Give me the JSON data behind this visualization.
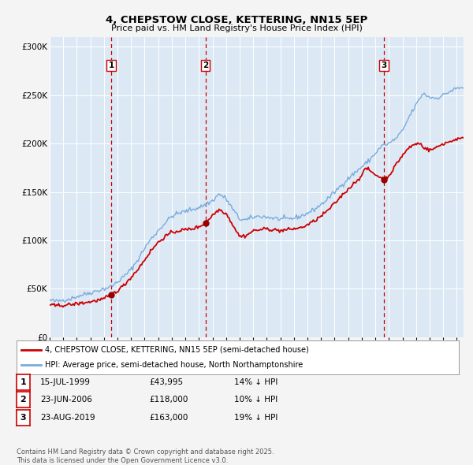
{
  "title": "4, CHEPSTOW CLOSE, KETTERING, NN15 5EP",
  "subtitle": "Price paid vs. HM Land Registry's House Price Index (HPI)",
  "background_color": "#f4f4f4",
  "plot_bg_color": "#dce9f5",
  "red_line_color": "#cc0000",
  "blue_line_color": "#7aabdc",
  "grid_color": "#ffffff",
  "sale_marker_color": "#990000",
  "dashed_line_color": "#cc0000",
  "ylim": [
    0,
    310000
  ],
  "yticks": [
    0,
    50000,
    100000,
    150000,
    200000,
    250000,
    300000
  ],
  "ytick_labels": [
    "£0",
    "£50K",
    "£100K",
    "£150K",
    "£200K",
    "£250K",
    "£300K"
  ],
  "sales": [
    {
      "num": 1,
      "date_x": 1999.54,
      "price": 43995,
      "label": "15-JUL-1999",
      "price_str": "£43,995",
      "hpi_str": "14% ↓ HPI"
    },
    {
      "num": 2,
      "date_x": 2006.48,
      "price": 118000,
      "label": "23-JUN-2006",
      "price_str": "£118,000",
      "hpi_str": "10% ↓ HPI"
    },
    {
      "num": 3,
      "date_x": 2019.64,
      "price": 163000,
      "label": "23-AUG-2019",
      "price_str": "£163,000",
      "hpi_str": "19% ↓ HPI"
    }
  ],
  "legend_entries": [
    {
      "label": "4, CHEPSTOW CLOSE, KETTERING, NN15 5EP (semi-detached house)",
      "color": "#cc0000"
    },
    {
      "label": "HPI: Average price, semi-detached house, North Northamptonshire",
      "color": "#7aabdc"
    }
  ],
  "footnote": "Contains HM Land Registry data © Crown copyright and database right 2025.\nThis data is licensed under the Open Government Licence v3.0.",
  "xmin": 1995.0,
  "xmax": 2025.5,
  "hpi_key_points": [
    [
      1995.0,
      38000
    ],
    [
      1995.5,
      37000
    ],
    [
      1996.0,
      38500
    ],
    [
      1996.5,
      39500
    ],
    [
      1997.0,
      42000
    ],
    [
      1997.5,
      44000
    ],
    [
      1998.0,
      46000
    ],
    [
      1998.5,
      48000
    ],
    [
      1999.0,
      50000
    ],
    [
      1999.5,
      52000
    ],
    [
      2000.0,
      57000
    ],
    [
      2000.5,
      63000
    ],
    [
      2001.0,
      70000
    ],
    [
      2001.5,
      80000
    ],
    [
      2002.0,
      92000
    ],
    [
      2002.5,
      102000
    ],
    [
      2003.0,
      110000
    ],
    [
      2003.5,
      118000
    ],
    [
      2004.0,
      125000
    ],
    [
      2004.5,
      128000
    ],
    [
      2005.0,
      130000
    ],
    [
      2005.5,
      132000
    ],
    [
      2006.0,
      134000
    ],
    [
      2006.5,
      137000
    ],
    [
      2007.0,
      141000
    ],
    [
      2007.5,
      148000
    ],
    [
      2008.0,
      143000
    ],
    [
      2008.5,
      132000
    ],
    [
      2009.0,
      122000
    ],
    [
      2009.5,
      121000
    ],
    [
      2010.0,
      124000
    ],
    [
      2010.5,
      125000
    ],
    [
      2011.0,
      124000
    ],
    [
      2011.5,
      123000
    ],
    [
      2012.0,
      122000
    ],
    [
      2012.5,
      122000
    ],
    [
      2013.0,
      123000
    ],
    [
      2013.5,
      125000
    ],
    [
      2014.0,
      128000
    ],
    [
      2014.5,
      132000
    ],
    [
      2015.0,
      137000
    ],
    [
      2015.5,
      143000
    ],
    [
      2016.0,
      150000
    ],
    [
      2016.5,
      157000
    ],
    [
      2017.0,
      164000
    ],
    [
      2017.5,
      170000
    ],
    [
      2018.0,
      176000
    ],
    [
      2018.5,
      182000
    ],
    [
      2019.0,
      190000
    ],
    [
      2019.5,
      198000
    ],
    [
      2020.0,
      200000
    ],
    [
      2020.5,
      205000
    ],
    [
      2021.0,
      213000
    ],
    [
      2021.5,
      228000
    ],
    [
      2022.0,
      240000
    ],
    [
      2022.5,
      252000
    ],
    [
      2023.0,
      248000
    ],
    [
      2023.5,
      247000
    ],
    [
      2024.0,
      250000
    ],
    [
      2024.5,
      254000
    ],
    [
      2025.0,
      257000
    ],
    [
      2025.5,
      258000
    ]
  ],
  "price_key_points": [
    [
      1995.0,
      33000
    ],
    [
      1995.5,
      32500
    ],
    [
      1996.0,
      33000
    ],
    [
      1996.5,
      33500
    ],
    [
      1997.0,
      34500
    ],
    [
      1997.5,
      35500
    ],
    [
      1998.0,
      36500
    ],
    [
      1998.5,
      38000
    ],
    [
      1999.0,
      39500
    ],
    [
      1999.54,
      43995
    ],
    [
      2000.0,
      48000
    ],
    [
      2000.5,
      54000
    ],
    [
      2001.0,
      62000
    ],
    [
      2001.5,
      70000
    ],
    [
      2002.0,
      80000
    ],
    [
      2002.5,
      90000
    ],
    [
      2003.0,
      98000
    ],
    [
      2003.5,
      104000
    ],
    [
      2004.0,
      108000
    ],
    [
      2004.5,
      110000
    ],
    [
      2005.0,
      111000
    ],
    [
      2005.5,
      112000
    ],
    [
      2006.0,
      114000
    ],
    [
      2006.48,
      118000
    ],
    [
      2007.0,
      126000
    ],
    [
      2007.5,
      132000
    ],
    [
      2008.0,
      128000
    ],
    [
      2008.5,
      116000
    ],
    [
      2009.0,
      104000
    ],
    [
      2009.5,
      105000
    ],
    [
      2010.0,
      110000
    ],
    [
      2010.5,
      111000
    ],
    [
      2011.0,
      112000
    ],
    [
      2011.5,
      111000
    ],
    [
      2012.0,
      110000
    ],
    [
      2012.5,
      111000
    ],
    [
      2013.0,
      112000
    ],
    [
      2013.5,
      113000
    ],
    [
      2014.0,
      116000
    ],
    [
      2014.5,
      120000
    ],
    [
      2015.0,
      125000
    ],
    [
      2015.5,
      131000
    ],
    [
      2016.0,
      138000
    ],
    [
      2016.5,
      146000
    ],
    [
      2017.0,
      153000
    ],
    [
      2017.5,
      160000
    ],
    [
      2018.0,
      167000
    ],
    [
      2018.3,
      175000
    ],
    [
      2018.6,
      172000
    ],
    [
      2019.0,
      168000
    ],
    [
      2019.4,
      165000
    ],
    [
      2019.64,
      163000
    ],
    [
      2020.0,
      167000
    ],
    [
      2020.3,
      173000
    ],
    [
      2020.6,
      180000
    ],
    [
      2021.0,
      188000
    ],
    [
      2021.5,
      196000
    ],
    [
      2022.0,
      200000
    ],
    [
      2022.3,
      200000
    ],
    [
      2022.6,
      196000
    ],
    [
      2023.0,
      193000
    ],
    [
      2023.5,
      196000
    ],
    [
      2024.0,
      200000
    ],
    [
      2024.5,
      202000
    ],
    [
      2025.0,
      205000
    ],
    [
      2025.5,
      205000
    ]
  ]
}
